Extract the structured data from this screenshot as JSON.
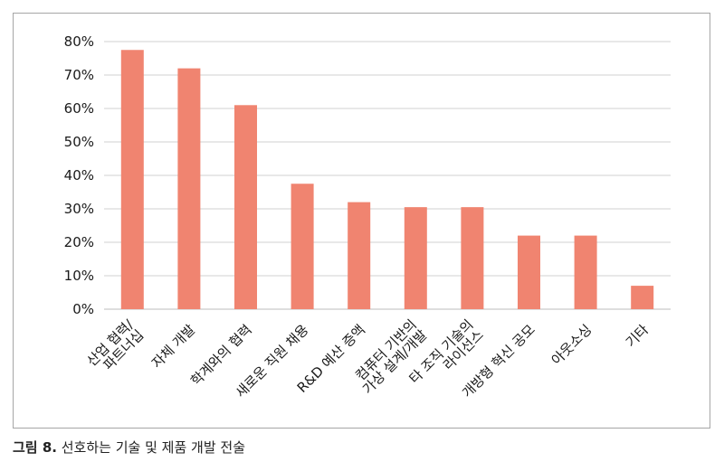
{
  "caption": {
    "label": "그림 8.",
    "text": "선호하는 기술 및 제품 개발 전술"
  },
  "chart_data": {
    "type": "bar",
    "categories": [
      [
        "산업 협력/",
        "파트너십"
      ],
      [
        "자체 개발"
      ],
      [
        "학계와의 협력"
      ],
      [
        "새로운 직원 채용"
      ],
      [
        "R&D 예산 증액"
      ],
      [
        "컴퓨터 기반의",
        "가상 설계/개발"
      ],
      [
        "타 조직 기술의",
        "라이선스"
      ],
      [
        "개방형 혁신 공모"
      ],
      [
        "아웃소싱"
      ],
      [
        "기타"
      ]
    ],
    "values": [
      77.5,
      72,
      61,
      37.5,
      32,
      30.5,
      30.5,
      22,
      22,
      7
    ],
    "ylim": [
      0,
      80
    ],
    "yticks": [
      "0%",
      "10%",
      "20%",
      "30%",
      "40%",
      "50%",
      "60%",
      "70%",
      "80%"
    ],
    "grid": true,
    "bar_color": "#f08470",
    "grid_color": "#d0d0d0"
  }
}
